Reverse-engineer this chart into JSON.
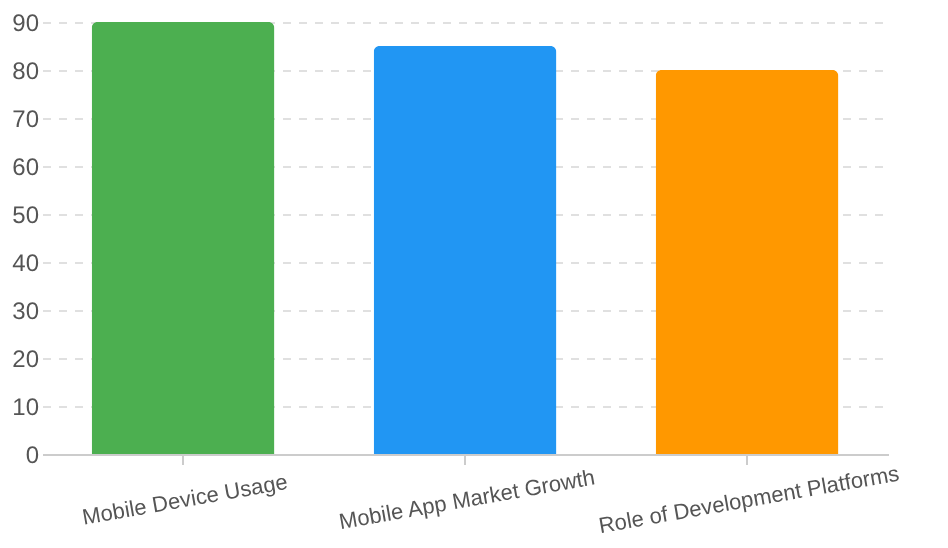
{
  "chart_data": {
    "type": "bar",
    "categories": [
      "Mobile Device Usage",
      "Mobile App Market Growth",
      "Role of Development Platforms"
    ],
    "values": [
      90,
      85,
      80
    ],
    "colors": [
      "#4caf50",
      "#2196f3",
      "#ff9800"
    ],
    "ylim": [
      0,
      90
    ],
    "yticks": [
      0,
      10,
      20,
      30,
      40,
      50,
      60,
      70,
      80,
      90
    ],
    "grid": "y",
    "legend": false
  }
}
